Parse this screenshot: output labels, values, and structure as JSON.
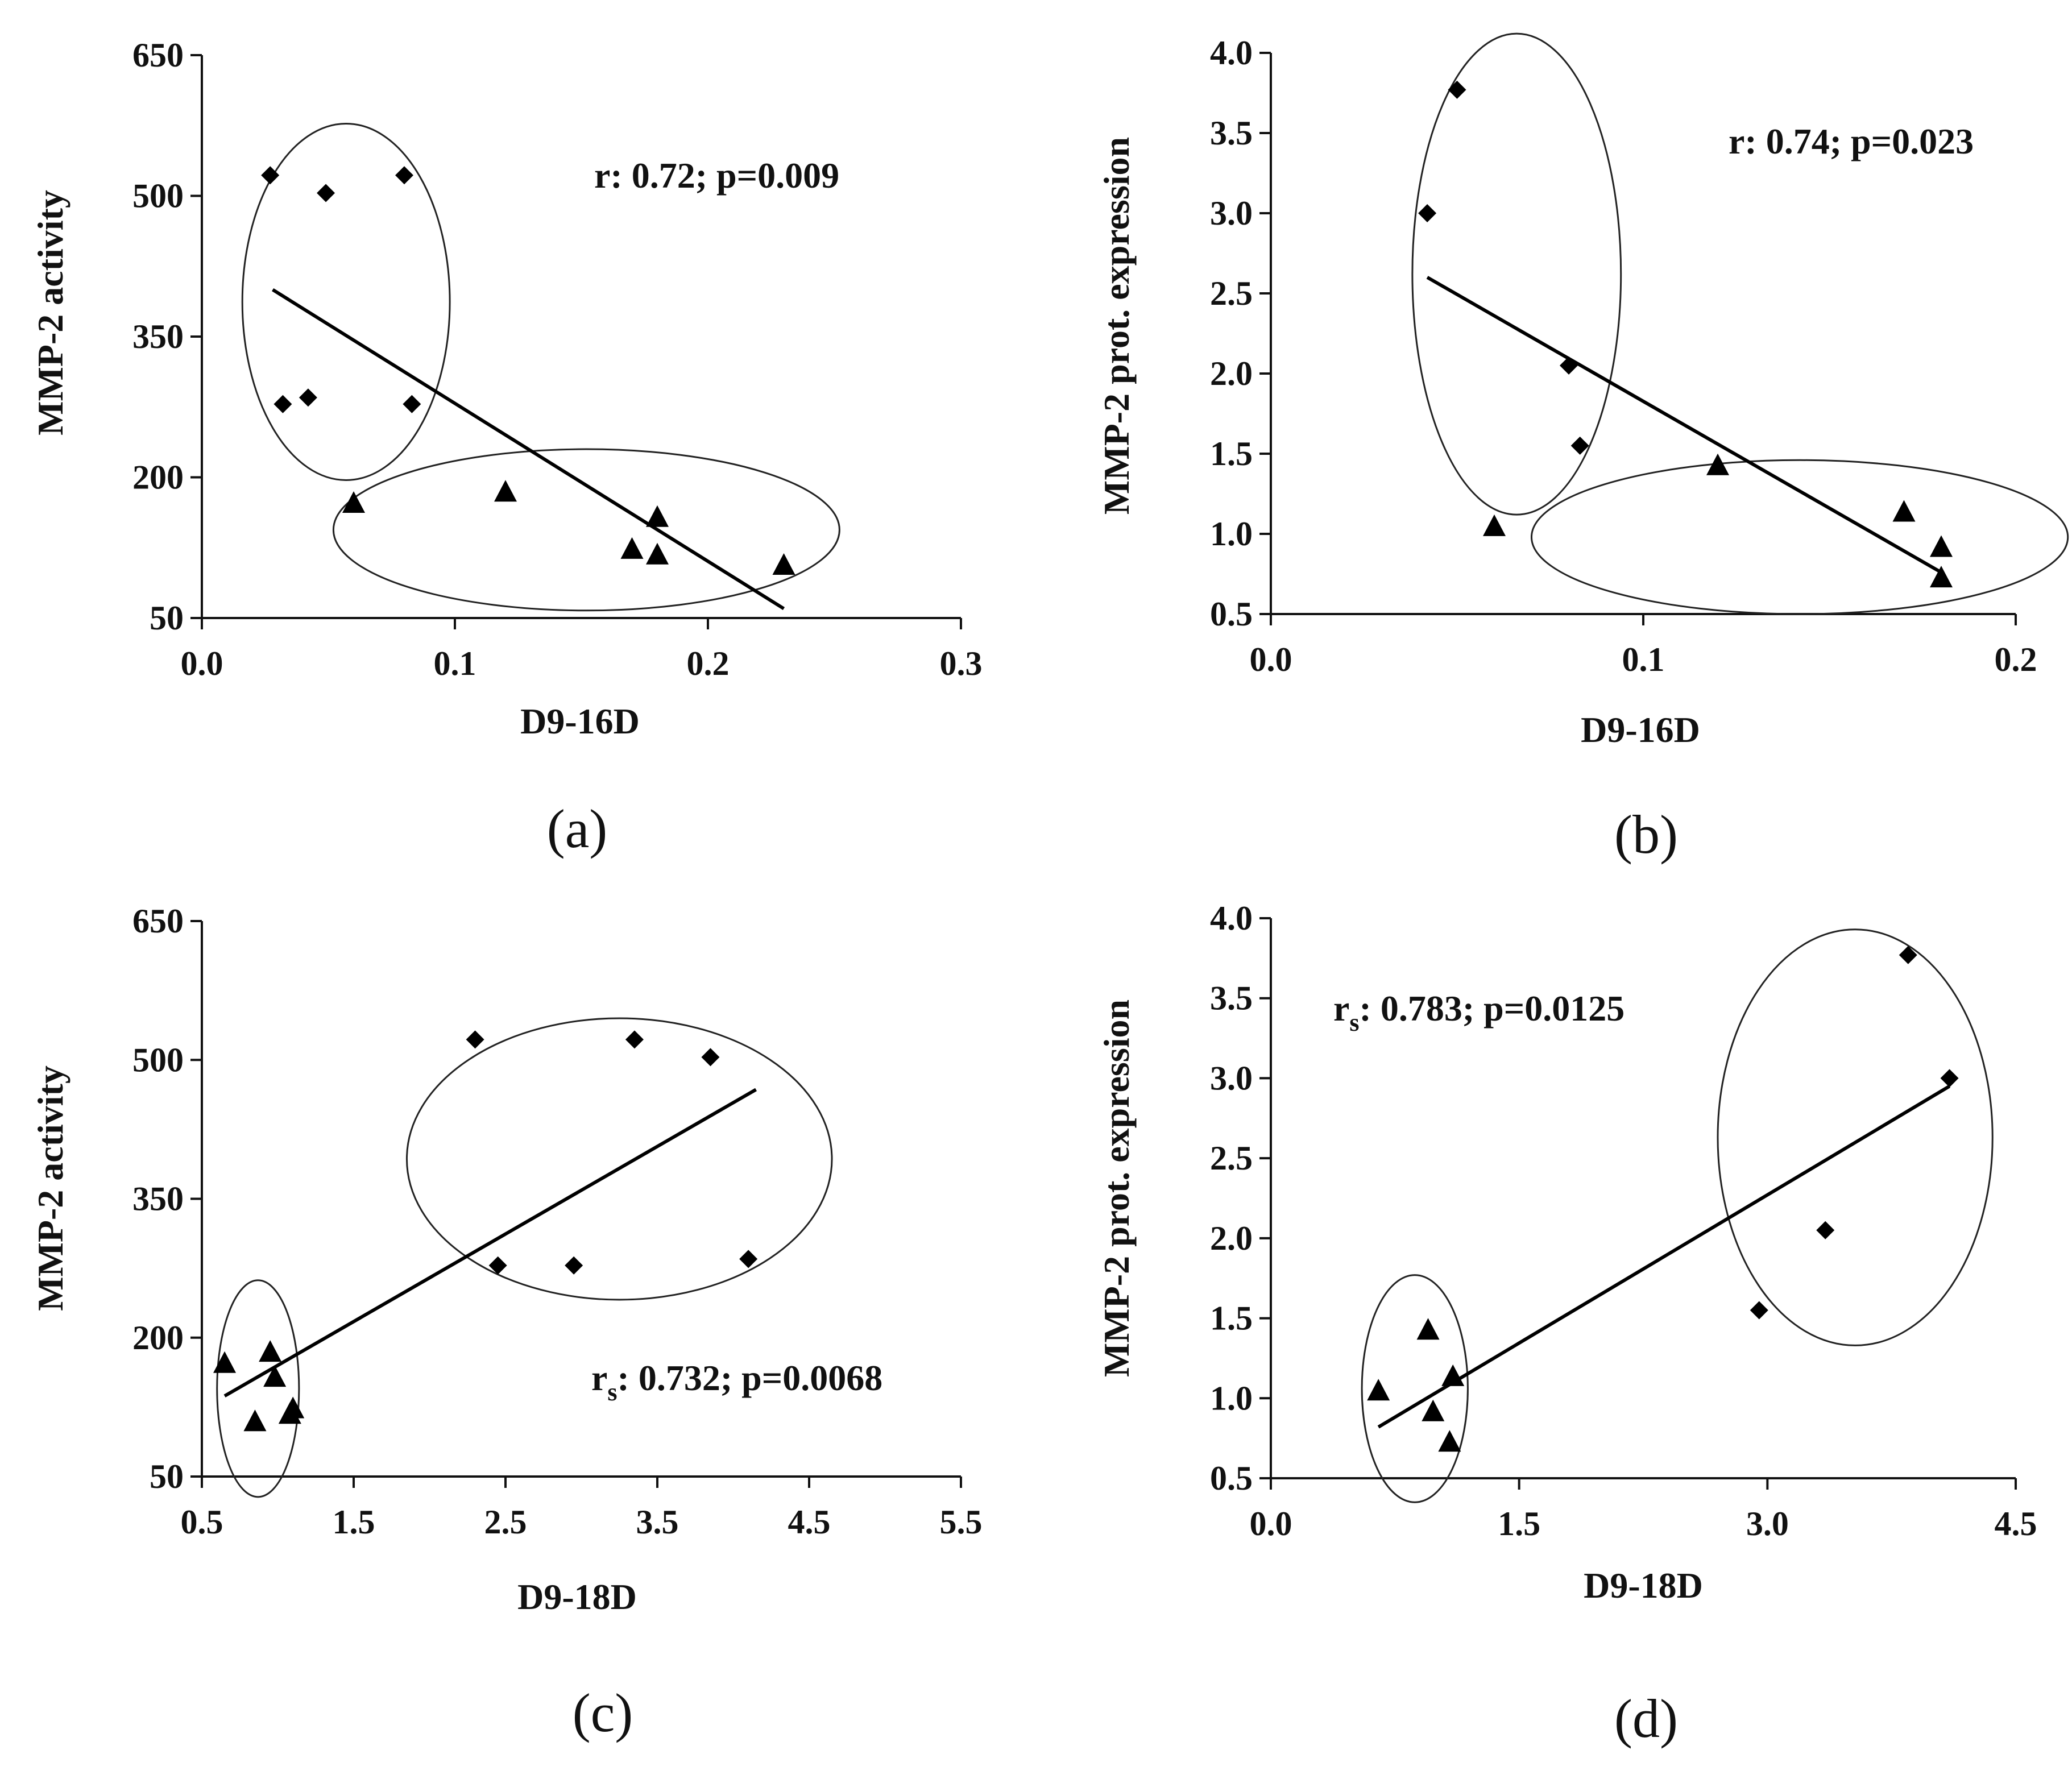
{
  "figure": "MMP-2 correlation scatter plots",
  "chart_data": [
    {
      "type": "scatter",
      "panel_label": "(a)",
      "title": "",
      "xlabel": "D9-16D",
      "ylabel": "MMP-2 activity",
      "xlim": [
        0.0,
        0.3
      ],
      "ylim": [
        50,
        650
      ],
      "xticks": [
        "0.0",
        "0.1",
        "0.2",
        "0.3"
      ],
      "xtick_values": [
        0.0,
        0.1,
        0.2,
        0.3
      ],
      "yticks": [
        "50",
        "200",
        "350",
        "500",
        "650"
      ],
      "ytick_values": [
        50,
        200,
        350,
        500,
        650
      ],
      "annotation": {
        "prefix": "r",
        "subscript": "",
        "text": ": 0.72; p=0.009"
      },
      "series": [
        {
          "name": "diamonds",
          "marker": "diamond",
          "x": [
            0.027,
            0.032,
            0.042,
            0.049,
            0.08,
            0.083
          ],
          "y": [
            522,
            278,
            285,
            503,
            522,
            278
          ]
        },
        {
          "name": "triangles",
          "marker": "triangle",
          "x": [
            0.06,
            0.12,
            0.17,
            0.18,
            0.18,
            0.23
          ],
          "y": [
            173,
            185,
            124,
            158,
            118,
            107
          ]
        }
      ],
      "fit_line": {
        "x": [
          0.028,
          0.23
        ],
        "y": [
          400,
          60
        ]
      },
      "ellipses": [
        {
          "cx": 0.057,
          "cy": 387,
          "rx": 0.041,
          "ry": 190
        },
        {
          "cx": 0.152,
          "cy": 144,
          "rx": 0.1,
          "ry": 86
        }
      ]
    },
    {
      "type": "scatter",
      "panel_label": "(b)",
      "title": "",
      "xlabel": "D9-16D",
      "ylabel": "MMP-2 prot. expression",
      "xlim": [
        0.0,
        0.2
      ],
      "ylim": [
        0.5,
        4.0
      ],
      "xticks": [
        "0.0",
        "0.1",
        "0.2"
      ],
      "xtick_values": [
        0.0,
        0.1,
        0.2
      ],
      "yticks": [
        "0.5",
        "1.0",
        "1.5",
        "2.0",
        "2.5",
        "3.0",
        "3.5",
        "4.0"
      ],
      "ytick_values": [
        0.5,
        1.0,
        1.5,
        2.0,
        2.5,
        3.0,
        3.5,
        4.0
      ],
      "annotation": {
        "prefix": "r",
        "subscript": "",
        "text": ": 0.74; p=0.023"
      },
      "series": [
        {
          "name": "diamonds",
          "marker": "diamond",
          "x": [
            0.042,
            0.05,
            0.08,
            0.083
          ],
          "y": [
            3.0,
            3.77,
            2.05,
            1.55
          ]
        },
        {
          "name": "triangles",
          "marker": "triangle",
          "x": [
            0.06,
            0.12,
            0.17,
            0.18,
            0.18
          ],
          "y": [
            1.05,
            1.43,
            1.14,
            0.92,
            0.73
          ]
        }
      ],
      "fit_line": {
        "x": [
          0.042,
          0.18
        ],
        "y": [
          2.6,
          0.76
        ]
      },
      "ellipses": [
        {
          "cx": 0.066,
          "cy": 2.62,
          "rx": 0.028,
          "ry": 1.5
        },
        {
          "cx": 0.142,
          "cy": 0.98,
          "rx": 0.072,
          "ry": 0.48
        }
      ]
    },
    {
      "type": "scatter",
      "panel_label": "(c)",
      "title": "",
      "xlabel": "D9-18D",
      "ylabel": "MMP-2 activity",
      "xlim": [
        0.5,
        5.5
      ],
      "ylim": [
        50,
        650
      ],
      "xticks": [
        "0.5",
        "1.5",
        "2.5",
        "3.5",
        "4.5",
        "5.5"
      ],
      "xtick_values": [
        0.5,
        1.5,
        2.5,
        3.5,
        4.5,
        5.5
      ],
      "yticks": [
        "50",
        "200",
        "350",
        "500",
        "650"
      ],
      "ytick_values": [
        50,
        200,
        350,
        500,
        650
      ],
      "annotation": {
        "prefix": "r",
        "subscript": "s",
        "text": ": 0.732; p=0.0068"
      },
      "series": [
        {
          "name": "diamonds",
          "marker": "diamond",
          "x": [
            2.3,
            2.45,
            2.95,
            3.35,
            3.85,
            4.1
          ],
          "y": [
            522,
            278,
            278,
            522,
            503,
            285
          ]
        },
        {
          "name": "triangles",
          "marker": "triangle",
          "x": [
            0.65,
            0.85,
            0.95,
            0.98,
            1.08,
            1.1
          ],
          "y": [
            173,
            110,
            185,
            158,
            118,
            124
          ]
        }
      ],
      "fit_line": {
        "x": [
          0.65,
          4.15
        ],
        "y": [
          137,
          468
        ]
      },
      "ellipses": [
        {
          "cx": 0.87,
          "cy": 145,
          "rx": 0.27,
          "ry": 117
        },
        {
          "cx": 3.25,
          "cy": 393,
          "rx": 1.4,
          "ry": 152
        }
      ]
    },
    {
      "type": "scatter",
      "panel_label": "(d)",
      "title": "",
      "xlabel": "D9-18D",
      "ylabel": "MMP-2 prot. expression",
      "xlim": [
        0.0,
        4.5
      ],
      "ylim": [
        0.5,
        4.0
      ],
      "xticks": [
        "0.0",
        "1.5",
        "3.0",
        "4.5"
      ],
      "xtick_values": [
        0.0,
        1.5,
        3.0,
        4.5
      ],
      "yticks": [
        "0.5",
        "1.0",
        "1.5",
        "2.0",
        "2.5",
        "3.0",
        "3.5",
        "4.0"
      ],
      "ytick_values": [
        0.5,
        1.0,
        1.5,
        2.0,
        2.5,
        3.0,
        3.5,
        4.0
      ],
      "annotation": {
        "prefix": "r",
        "subscript": "s",
        "text": ": 0.783; p=0.0125"
      },
      "series": [
        {
          "name": "diamonds",
          "marker": "diamond",
          "x": [
            2.95,
            3.35,
            3.85,
            4.1
          ],
          "y": [
            1.55,
            2.05,
            3.77,
            3.0
          ]
        },
        {
          "name": "triangles",
          "marker": "triangle",
          "x": [
            0.65,
            0.95,
            0.98,
            1.08,
            1.1
          ],
          "y": [
            1.05,
            1.43,
            0.92,
            0.73,
            1.14
          ]
        }
      ],
      "fit_line": {
        "x": [
          0.65,
          4.1
        ],
        "y": [
          0.82,
          2.95
        ]
      },
      "ellipses": [
        {
          "cx": 0.87,
          "cy": 1.06,
          "rx": 0.32,
          "ry": 0.71
        },
        {
          "cx": 3.53,
          "cy": 2.63,
          "rx": 0.83,
          "ry": 1.3
        }
      ]
    }
  ]
}
